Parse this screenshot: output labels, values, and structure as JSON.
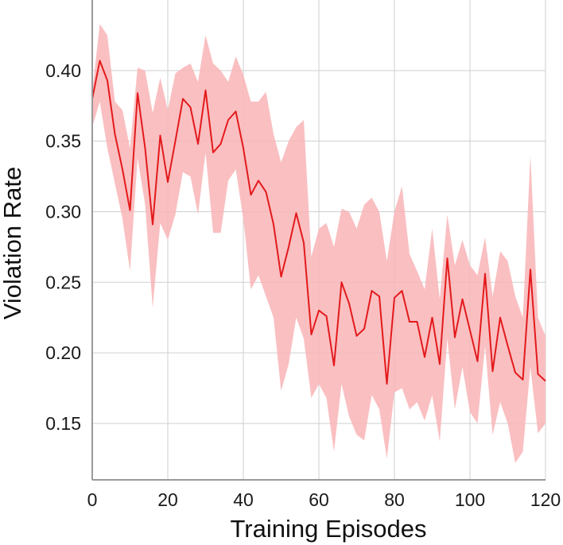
{
  "chart_data": {
    "type": "line",
    "title": "",
    "xlabel": "Training Episodes",
    "ylabel": "Violation Rate",
    "xlim": [
      0,
      120
    ],
    "ylim": [
      0.11,
      0.45
    ],
    "xticks": [
      0,
      20,
      40,
      60,
      80,
      100,
      120
    ],
    "yticks": [
      0.15,
      0.2,
      0.25,
      0.3,
      0.35,
      0.4
    ],
    "xtick_labels": [
      "0",
      "20",
      "40",
      "60",
      "80",
      "100",
      "120"
    ],
    "ytick_labels": [
      "0.15",
      "0.20",
      "0.25",
      "0.30",
      "0.35",
      "0.40"
    ],
    "grid": true,
    "colors": {
      "line": "#e31a1c",
      "band": "#f9b4b6",
      "grid": "#cfcfcf",
      "axis": "#9a9a9a"
    },
    "series": [
      {
        "x": [
          0,
          2,
          4,
          6,
          8,
          10,
          12,
          14,
          16,
          18,
          20,
          22,
          24,
          26,
          28,
          30,
          32,
          34,
          36,
          38,
          40,
          42,
          44,
          46,
          48,
          50,
          52,
          54,
          56,
          58,
          60,
          62,
          64,
          66,
          68,
          70,
          72,
          74,
          76,
          78,
          80,
          82,
          84,
          86,
          88,
          90,
          92,
          94,
          96,
          98,
          100,
          102,
          104,
          106,
          108,
          110,
          112,
          114,
          116,
          118,
          120
        ],
        "y": [
          0.38,
          0.407,
          0.393,
          0.355,
          0.33,
          0.301,
          0.384,
          0.345,
          0.291,
          0.354,
          0.321,
          0.35,
          0.38,
          0.374,
          0.348,
          0.386,
          0.342,
          0.348,
          0.365,
          0.371,
          0.345,
          0.312,
          0.322,
          0.314,
          0.291,
          0.254,
          0.275,
          0.299,
          0.278,
          0.213,
          0.23,
          0.226,
          0.191,
          0.25,
          0.235,
          0.212,
          0.217,
          0.244,
          0.24,
          0.178,
          0.239,
          0.244,
          0.222,
          0.222,
          0.197,
          0.225,
          0.192,
          0.267,
          0.211,
          0.238,
          0.216,
          0.194,
          0.256,
          0.187,
          0.225,
          0.205,
          0.186,
          0.181,
          0.259,
          0.185,
          0.18
        ],
        "upper": [
          0.385,
          0.433,
          0.425,
          0.378,
          0.372,
          0.345,
          0.402,
          0.4,
          0.37,
          0.395,
          0.372,
          0.398,
          0.402,
          0.405,
          0.392,
          0.425,
          0.405,
          0.4,
          0.392,
          0.41,
          0.397,
          0.378,
          0.378,
          0.385,
          0.355,
          0.335,
          0.35,
          0.36,
          0.365,
          0.268,
          0.288,
          0.292,
          0.275,
          0.302,
          0.3,
          0.288,
          0.305,
          0.31,
          0.3,
          0.265,
          0.3,
          0.318,
          0.27,
          0.258,
          0.245,
          0.288,
          0.238,
          0.298,
          0.262,
          0.28,
          0.262,
          0.255,
          0.282,
          0.24,
          0.272,
          0.265,
          0.24,
          0.225,
          0.34,
          0.225,
          0.212
        ],
        "lower": [
          0.36,
          0.378,
          0.345,
          0.32,
          0.295,
          0.258,
          0.338,
          0.305,
          0.232,
          0.292,
          0.28,
          0.298,
          0.328,
          0.325,
          0.298,
          0.342,
          0.285,
          0.285,
          0.322,
          0.33,
          0.295,
          0.245,
          0.255,
          0.24,
          0.225,
          0.173,
          0.192,
          0.225,
          0.21,
          0.168,
          0.178,
          0.168,
          0.13,
          0.178,
          0.155,
          0.142,
          0.138,
          0.17,
          0.16,
          0.125,
          0.172,
          0.175,
          0.16,
          0.165,
          0.152,
          0.17,
          0.137,
          0.21,
          0.16,
          0.19,
          0.158,
          0.15,
          0.205,
          0.142,
          0.165,
          0.15,
          0.122,
          0.13,
          0.19,
          0.143,
          0.15
        ]
      }
    ]
  }
}
